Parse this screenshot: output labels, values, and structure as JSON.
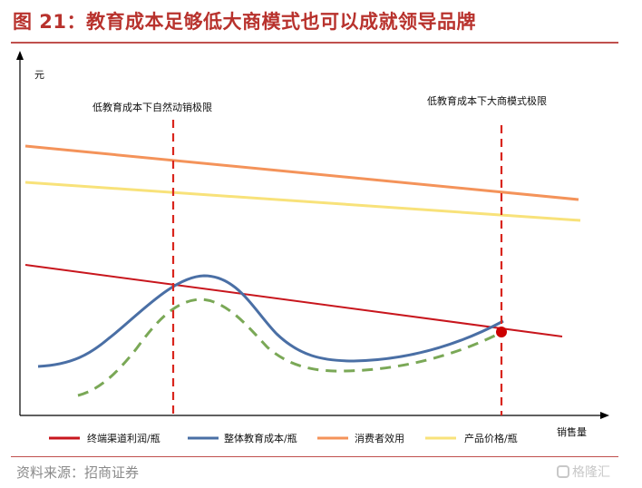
{
  "figure": {
    "title": "图 21：教育成本足够低大商模式也可以成就领导品牌",
    "source": "资料来源：招商证券",
    "watermark": "格隆汇"
  },
  "chart_data": {
    "type": "line",
    "title": "图 21：教育成本足够低大商模式也可以成就领导品牌",
    "xlabel": "销售量",
    "ylabel": "元",
    "grid": false,
    "legend_position": "bottom",
    "annotations": [
      {
        "id": "limit1",
        "text": "低教育成本下自然动销极限",
        "style": "dashed-vertical",
        "color": "#d9251d"
      },
      {
        "id": "limit2",
        "text": "低教育成本下大商模式极限",
        "style": "dashed-vertical",
        "color": "#d9251d"
      }
    ],
    "series": [
      {
        "key": "terminal",
        "name": "终端渠道利润/瓶",
        "color": "#c8161d",
        "style": "solid",
        "shape": "declining-line"
      },
      {
        "key": "education",
        "name": "整体教育成本/瓶",
        "color": "#4a6fa5",
        "style": "solid",
        "shape": "hump"
      },
      {
        "key": "utility",
        "name": "消费者效用",
        "color": "#f4935a",
        "style": "solid",
        "shape": "declining-line"
      },
      {
        "key": "price",
        "name": "产品价格/瓶",
        "color": "#f8e27a",
        "style": "solid",
        "shape": "declining-line"
      },
      {
        "key": "education_low",
        "name": "",
        "color": "#7aa856",
        "style": "dashed",
        "shape": "hump"
      }
    ],
    "highlight_point": {
      "description": "intersection",
      "color": "#cc0000"
    }
  }
}
